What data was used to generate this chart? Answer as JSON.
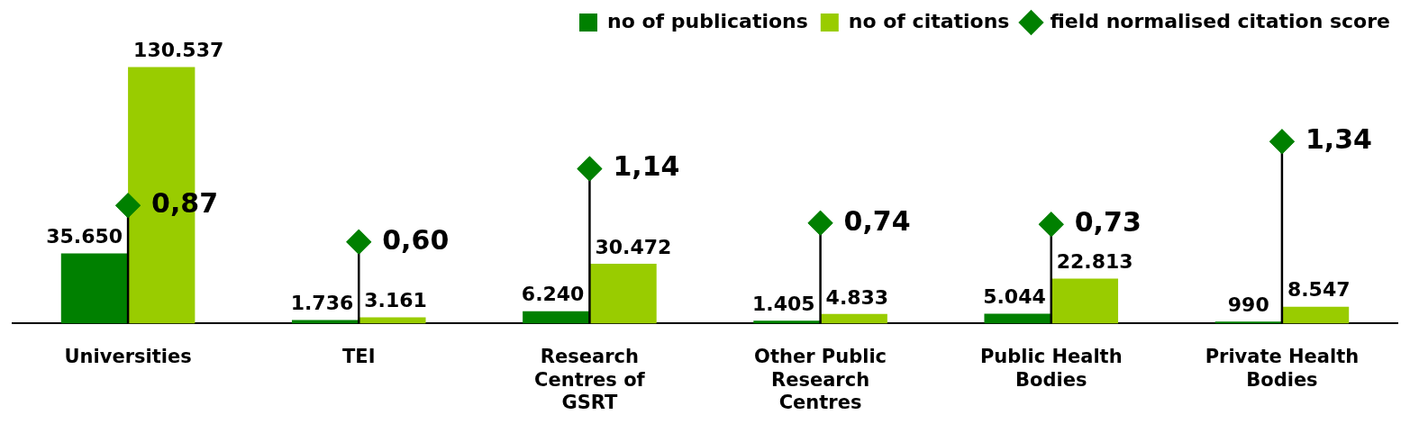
{
  "chart_data": {
    "type": "bar",
    "categories": [
      "Universities",
      "TEI",
      "Research Centres of GSRT",
      "Other Public Research Centres",
      "Public Health Bodies",
      "Private Health Bodies"
    ],
    "series": [
      {
        "name": "no of publications",
        "color": "#008000",
        "values": [
          35650,
          1736,
          6240,
          1405,
          5044,
          990
        ],
        "value_labels": [
          "35.650",
          "1.736",
          "6.240",
          "1.405",
          "5.044",
          "990"
        ]
      },
      {
        "name": "no of citations",
        "color": "#99cc00",
        "values": [
          130537,
          3161,
          30472,
          4833,
          22813,
          8547
        ],
        "value_labels": [
          "130.537",
          "3.161",
          "30.472",
          "4.833",
          "22.813",
          "8.547"
        ]
      },
      {
        "name": "field normalised citation score",
        "type": "lollipop",
        "axis": "y2",
        "marker": "diamond",
        "color": "#008000",
        "values": [
          0.87,
          0.6,
          1.14,
          0.74,
          0.73,
          1.34
        ],
        "value_labels": [
          "0,87",
          "0,60",
          "1,14",
          "0,74",
          "0,73",
          "1,34"
        ]
      }
    ],
    "legend": "top right"
  }
}
